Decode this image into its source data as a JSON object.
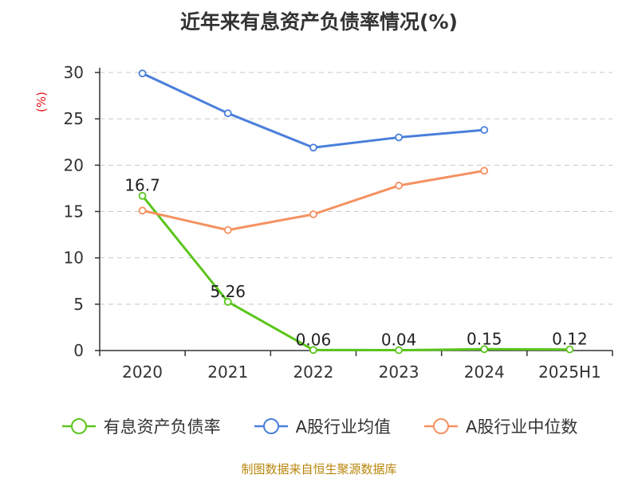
{
  "chart_data": {
    "type": "line",
    "title": "近年来有息资产负债率情况(%)",
    "ylabel": "(%)",
    "xlabel": "",
    "categories": [
      "2020",
      "2021",
      "2022",
      "2023",
      "2024",
      "2025H1"
    ],
    "ylim": [
      0,
      30
    ],
    "yticks": [
      0,
      5,
      10,
      15,
      20,
      25,
      30
    ],
    "grid": true,
    "legend_position": "bottom",
    "series": [
      {
        "name": "有息资产负债率",
        "color": "#5bc51c",
        "values": [
          16.7,
          5.26,
          0.06,
          0.04,
          0.15,
          0.12
        ],
        "labels": [
          "16.7",
          "5.26",
          "0.06",
          "0.04",
          "0.15",
          "0.12"
        ]
      },
      {
        "name": "A股行业均值",
        "color": "#4a7fdb",
        "values": [
          29.9,
          25.6,
          21.9,
          23.0,
          23.8,
          null
        ]
      },
      {
        "name": "A股行业中位数",
        "color": "#f59161",
        "values": [
          15.1,
          13.0,
          14.7,
          17.8,
          19.4,
          null
        ]
      }
    ],
    "source": "制图数据来自恒生聚源数据库"
  }
}
